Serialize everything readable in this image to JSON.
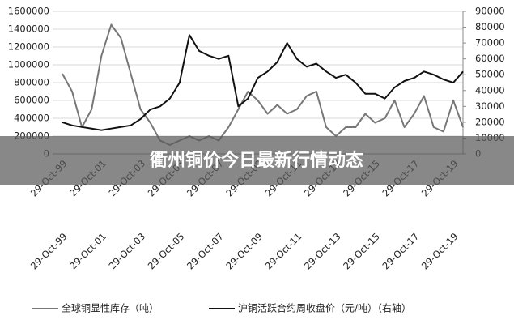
{
  "banner": {
    "title": "衢州铜价今日最新行情动态"
  },
  "chart_data": {
    "type": "line",
    "categories": [
      "29-Oct-99",
      null,
      null,
      null,
      "29-Oct-01",
      null,
      null,
      null,
      "29-Oct-03",
      null,
      null,
      null,
      "29-Oct-05",
      null,
      null,
      null,
      "29-Oct-07",
      null,
      null,
      null,
      "29-Oct-09",
      null,
      null,
      null,
      "29-Oct-11",
      null,
      null,
      null,
      "29-Oct-13",
      null,
      null,
      null,
      "29-Oct-15",
      null,
      null,
      null,
      "29-Oct-17",
      null,
      null,
      null,
      "29-Oct-19",
      null
    ],
    "series": [
      {
        "name": "全球铜显性库存（吨）",
        "color": "#777777",
        "values": [
          900000,
          700000,
          300000,
          500000,
          1100000,
          1450000,
          1300000,
          900000,
          500000,
          350000,
          150000,
          100000,
          150000,
          200000,
          150000,
          200000,
          150000,
          300000,
          500000,
          700000,
          600000,
          450000,
          550000,
          450000,
          500000,
          650000,
          700000,
          300000,
          200000,
          300000,
          300000,
          450000,
          350000,
          400000,
          600000,
          300000,
          450000,
          650000,
          300000,
          250000,
          600000,
          300000
        ]
      },
      {
        "name": "沪铜活跃合约周收盘价（元/吨）（右轴）",
        "color": "#111111",
        "axis": "y2",
        "values": [
          20000,
          18000,
          17000,
          16000,
          15000,
          16000,
          17000,
          18000,
          22000,
          28000,
          30000,
          35000,
          45000,
          75000,
          65000,
          62000,
          60000,
          62000,
          30000,
          35000,
          48000,
          52000,
          58000,
          70000,
          60000,
          55000,
          57000,
          52000,
          48000,
          50000,
          45000,
          38000,
          38000,
          35000,
          42000,
          46000,
          48000,
          52000,
          50000,
          47000,
          45000,
          52000
        ]
      }
    ],
    "ylim": [
      0,
      1600000
    ],
    "yticks": [
      0,
      200000,
      400000,
      600000,
      800000,
      1000000,
      1200000,
      1400000,
      1600000
    ],
    "y2lim": [
      0,
      90000
    ],
    "y2ticks": [
      0,
      10000,
      20000,
      30000,
      40000,
      50000,
      60000,
      70000,
      80000,
      90000
    ],
    "grid": true
  }
}
